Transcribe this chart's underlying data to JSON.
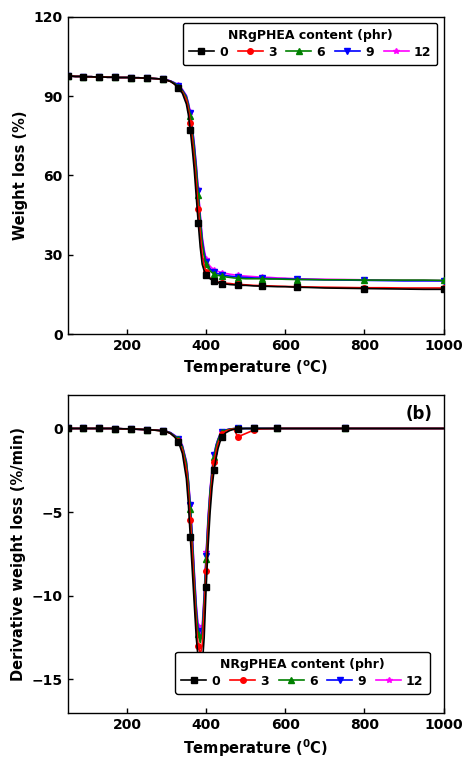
{
  "tga_series": {
    "labels": [
      "0",
      "3",
      "6",
      "9",
      "12"
    ],
    "colors": [
      "black",
      "red",
      "green",
      "blue",
      "magenta"
    ],
    "markers": [
      "s",
      "o",
      "^",
      "v",
      "*"
    ],
    "x": [
      50,
      60,
      70,
      80,
      90,
      100,
      110,
      120,
      130,
      140,
      150,
      160,
      170,
      180,
      190,
      200,
      210,
      220,
      230,
      240,
      250,
      260,
      270,
      280,
      290,
      300,
      310,
      320,
      330,
      340,
      350,
      355,
      360,
      365,
      370,
      375,
      380,
      385,
      390,
      395,
      400,
      405,
      410,
      415,
      420,
      425,
      430,
      435,
      440,
      450,
      460,
      470,
      480,
      490,
      500,
      520,
      540,
      560,
      580,
      600,
      630,
      660,
      700,
      750,
      800,
      850,
      900,
      950,
      1000
    ],
    "y_data": [
      [
        97.5,
        97.5,
        97.4,
        97.4,
        97.3,
        97.3,
        97.3,
        97.2,
        97.2,
        97.2,
        97.1,
        97.1,
        97.1,
        97.0,
        97.0,
        97.0,
        97.0,
        96.9,
        96.9,
        96.8,
        96.8,
        96.7,
        96.6,
        96.5,
        96.3,
        96.0,
        95.5,
        94.5,
        93.0,
        91.0,
        87.0,
        83.0,
        77.0,
        70.0,
        62.0,
        52.0,
        42.0,
        33.0,
        26.5,
        24.0,
        22.5,
        21.5,
        21.0,
        20.5,
        20.0,
        19.8,
        19.5,
        19.3,
        19.2,
        19.0,
        18.8,
        18.7,
        18.6,
        18.5,
        18.5,
        18.3,
        18.2,
        18.1,
        18.0,
        18.0,
        17.8,
        17.7,
        17.5,
        17.4,
        17.3,
        17.2,
        17.1,
        17.0,
        17.0
      ],
      [
        97.5,
        97.5,
        97.4,
        97.4,
        97.3,
        97.3,
        97.3,
        97.2,
        97.2,
        97.2,
        97.1,
        97.1,
        97.1,
        97.0,
        97.0,
        97.0,
        97.0,
        96.9,
        96.9,
        96.8,
        96.8,
        96.7,
        96.6,
        96.5,
        96.3,
        96.0,
        95.5,
        94.5,
        93.0,
        91.5,
        88.5,
        85.0,
        80.0,
        73.5,
        66.0,
        57.0,
        47.5,
        38.0,
        30.0,
        26.0,
        23.5,
        22.0,
        21.3,
        20.7,
        20.2,
        20.0,
        19.8,
        19.6,
        19.5,
        19.3,
        19.2,
        19.0,
        18.9,
        18.8,
        18.7,
        18.5,
        18.4,
        18.3,
        18.2,
        18.1,
        18.0,
        17.9,
        17.8,
        17.7,
        17.6,
        17.6,
        17.5,
        17.5,
        17.5
      ],
      [
        97.5,
        97.5,
        97.4,
        97.4,
        97.3,
        97.3,
        97.3,
        97.2,
        97.2,
        97.2,
        97.1,
        97.1,
        97.1,
        97.0,
        97.0,
        97.0,
        97.0,
        96.9,
        96.9,
        96.8,
        96.8,
        96.7,
        96.6,
        96.5,
        96.3,
        96.0,
        95.6,
        94.8,
        93.5,
        92.0,
        89.5,
        86.5,
        82.5,
        76.5,
        70.0,
        62.0,
        52.5,
        43.0,
        34.5,
        29.5,
        26.5,
        25.0,
        24.0,
        23.3,
        22.8,
        22.5,
        22.3,
        22.1,
        21.9,
        21.7,
        21.5,
        21.3,
        21.2,
        21.1,
        21.0,
        21.0,
        21.0,
        20.9,
        20.9,
        20.8,
        20.7,
        20.7,
        20.6,
        20.6,
        20.5,
        20.5,
        20.5,
        20.5,
        20.4
      ],
      [
        97.5,
        97.5,
        97.4,
        97.4,
        97.3,
        97.3,
        97.3,
        97.2,
        97.2,
        97.2,
        97.1,
        97.1,
        97.1,
        97.0,
        97.0,
        97.0,
        97.0,
        96.9,
        96.9,
        96.8,
        96.8,
        96.7,
        96.6,
        96.5,
        96.4,
        96.1,
        95.7,
        95.0,
        93.8,
        92.3,
        90.0,
        87.2,
        83.5,
        78.0,
        71.5,
        63.5,
        54.0,
        44.5,
        36.0,
        31.0,
        27.5,
        25.8,
        24.8,
        24.0,
        23.5,
        23.2,
        22.9,
        22.7,
        22.5,
        22.2,
        22.0,
        21.8,
        21.7,
        21.6,
        21.5,
        21.3,
        21.2,
        21.1,
        21.0,
        21.0,
        20.8,
        20.7,
        20.6,
        20.5,
        20.4,
        20.3,
        20.2,
        20.2,
        20.2
      ],
      [
        97.5,
        97.5,
        97.4,
        97.4,
        97.3,
        97.3,
        97.3,
        97.2,
        97.2,
        97.2,
        97.1,
        97.1,
        97.1,
        97.0,
        97.0,
        97.0,
        97.0,
        96.9,
        96.9,
        96.8,
        96.8,
        96.7,
        96.6,
        96.5,
        96.4,
        96.1,
        95.7,
        95.0,
        94.0,
        92.5,
        90.2,
        87.5,
        84.0,
        78.5,
        72.0,
        64.2,
        55.0,
        45.5,
        37.0,
        32.0,
        28.5,
        26.8,
        25.7,
        25.0,
        24.4,
        24.1,
        23.8,
        23.5,
        23.3,
        23.0,
        22.7,
        22.5,
        22.3,
        22.1,
        22.0,
        21.8,
        21.6,
        21.5,
        21.3,
        21.2,
        21.0,
        20.9,
        20.8,
        20.7,
        20.6,
        20.5,
        20.4,
        20.4,
        20.3
      ]
    ]
  },
  "dtg_series": {
    "labels": [
      "0",
      "3",
      "6",
      "9",
      "12"
    ],
    "colors": [
      "black",
      "red",
      "green",
      "blue",
      "magenta"
    ],
    "markers": [
      "s",
      "o",
      "^",
      "v",
      "*"
    ],
    "x": [
      50,
      60,
      70,
      80,
      90,
      100,
      110,
      120,
      130,
      140,
      150,
      160,
      170,
      180,
      190,
      200,
      210,
      220,
      230,
      240,
      250,
      260,
      270,
      280,
      290,
      300,
      310,
      320,
      330,
      340,
      350,
      355,
      360,
      365,
      370,
      375,
      380,
      385,
      390,
      395,
      400,
      405,
      410,
      415,
      420,
      425,
      430,
      435,
      440,
      450,
      460,
      470,
      480,
      490,
      500,
      510,
      520,
      530,
      540,
      560,
      580,
      600,
      650,
      700,
      750,
      800,
      900,
      1000
    ],
    "y_data": [
      [
        0.0,
        0.0,
        0.0,
        0.0,
        0.0,
        0.0,
        0.0,
        0.0,
        0.0,
        0.0,
        0.0,
        0.0,
        -0.01,
        -0.01,
        -0.02,
        -0.02,
        -0.03,
        -0.04,
        -0.05,
        -0.06,
        -0.07,
        -0.08,
        -0.1,
        -0.12,
        -0.15,
        -0.2,
        -0.3,
        -0.5,
        -0.8,
        -1.5,
        -3.0,
        -4.5,
        -6.5,
        -8.5,
        -10.5,
        -12.5,
        -13.8,
        -14.5,
        -14.2,
        -12.5,
        -9.5,
        -7.0,
        -5.0,
        -3.5,
        -2.5,
        -1.8,
        -1.2,
        -0.8,
        -0.5,
        -0.25,
        -0.12,
        -0.05,
        -0.02,
        -0.01,
        0.0,
        0.0,
        0.0,
        0.0,
        0.0,
        0.0,
        0.0,
        0.0,
        0.0,
        0.0,
        0.0,
        0.0,
        0.0,
        0.0
      ],
      [
        0.0,
        0.0,
        0.0,
        0.0,
        0.0,
        0.0,
        0.0,
        0.0,
        0.0,
        0.0,
        0.0,
        0.0,
        -0.01,
        -0.01,
        -0.02,
        -0.02,
        -0.03,
        -0.04,
        -0.05,
        -0.06,
        -0.07,
        -0.08,
        -0.1,
        -0.12,
        -0.15,
        -0.2,
        -0.3,
        -0.5,
        -0.75,
        -1.3,
        -2.5,
        -3.8,
        -5.5,
        -7.5,
        -9.8,
        -11.8,
        -13.0,
        -13.5,
        -13.0,
        -11.0,
        -8.5,
        -6.2,
        -4.3,
        -3.0,
        -2.0,
        -1.4,
        -0.9,
        -0.6,
        -0.35,
        -0.15,
        -0.07,
        -0.03,
        -0.5,
        -0.4,
        -0.3,
        -0.2,
        -0.1,
        -0.05,
        -0.02,
        -0.01,
        0.0,
        0.0,
        0.0,
        0.0,
        0.0,
        0.0,
        0.0,
        0.0
      ],
      [
        0.0,
        0.0,
        0.0,
        0.0,
        0.0,
        0.0,
        0.0,
        0.0,
        0.0,
        0.0,
        0.0,
        0.0,
        -0.01,
        -0.01,
        -0.02,
        -0.02,
        -0.03,
        -0.04,
        -0.05,
        -0.06,
        -0.07,
        -0.08,
        -0.1,
        -0.12,
        -0.14,
        -0.18,
        -0.27,
        -0.45,
        -0.65,
        -1.1,
        -2.1,
        -3.2,
        -4.8,
        -6.8,
        -9.0,
        -11.0,
        -12.3,
        -12.8,
        -12.3,
        -10.3,
        -7.8,
        -5.6,
        -3.8,
        -2.6,
        -1.7,
        -1.1,
        -0.7,
        -0.4,
        -0.22,
        -0.1,
        -0.04,
        -0.01,
        0.0,
        0.0,
        0.0,
        0.0,
        0.0,
        0.0,
        0.0,
        0.0,
        0.0,
        0.0,
        0.0,
        0.0,
        0.0,
        0.0,
        0.0,
        0.0
      ],
      [
        0.0,
        0.0,
        0.0,
        0.0,
        0.0,
        0.0,
        0.0,
        0.0,
        0.0,
        0.0,
        0.0,
        0.0,
        -0.01,
        -0.01,
        -0.02,
        -0.02,
        -0.03,
        -0.04,
        -0.05,
        -0.06,
        -0.07,
        -0.08,
        -0.09,
        -0.11,
        -0.13,
        -0.17,
        -0.25,
        -0.42,
        -0.62,
        -1.05,
        -2.0,
        -3.1,
        -4.6,
        -6.5,
        -8.7,
        -10.7,
        -12.1,
        -12.6,
        -12.1,
        -10.1,
        -7.6,
        -5.4,
        -3.7,
        -2.5,
        -1.6,
        -1.0,
        -0.65,
        -0.38,
        -0.2,
        -0.09,
        -0.03,
        -0.01,
        0.0,
        0.0,
        0.0,
        0.0,
        0.0,
        0.0,
        0.0,
        0.0,
        0.0,
        0.0,
        0.0,
        0.0,
        0.0,
        0.0,
        0.0,
        0.0
      ],
      [
        0.0,
        0.0,
        0.0,
        0.0,
        0.0,
        0.0,
        0.0,
        0.0,
        0.0,
        0.0,
        0.0,
        0.0,
        -0.01,
        -0.01,
        -0.02,
        -0.02,
        -0.03,
        -0.04,
        -0.05,
        -0.06,
        -0.07,
        -0.08,
        -0.09,
        -0.11,
        -0.13,
        -0.17,
        -0.25,
        -0.4,
        -0.6,
        -1.0,
        -1.95,
        -3.0,
        -4.5,
        -6.3,
        -8.5,
        -10.5,
        -11.8,
        -12.3,
        -11.8,
        -9.9,
        -7.4,
        -5.2,
        -3.6,
        -2.4,
        -1.55,
        -1.0,
        -0.62,
        -0.36,
        -0.19,
        -0.08,
        -0.03,
        -0.01,
        0.0,
        0.0,
        0.0,
        0.0,
        0.0,
        0.0,
        0.0,
        0.0,
        0.0,
        0.0,
        0.0,
        0.0,
        0.0,
        0.0,
        0.0,
        0.0
      ]
    ]
  },
  "tga_ylim": [
    0,
    120
  ],
  "tga_yticks": [
    0,
    30,
    60,
    90,
    120
  ],
  "dtg_ylim": [
    -17,
    2
  ],
  "dtg_yticks": [
    -15,
    -10,
    -5,
    0
  ],
  "xlim": [
    50,
    1000
  ],
  "xticks": [
    200,
    400,
    600,
    800,
    1000
  ],
  "tga_ylabel": "Weight loss (%)",
  "dtg_ylabel": "Derivative weight loss (%/min)",
  "legend_title": "NRgPHEA content (phr)",
  "legend_labels": [
    "0",
    "3",
    "6",
    "9",
    "12"
  ],
  "background_color": "white",
  "marker_size": 4,
  "marker_interval": 4,
  "linewidth": 1.2
}
